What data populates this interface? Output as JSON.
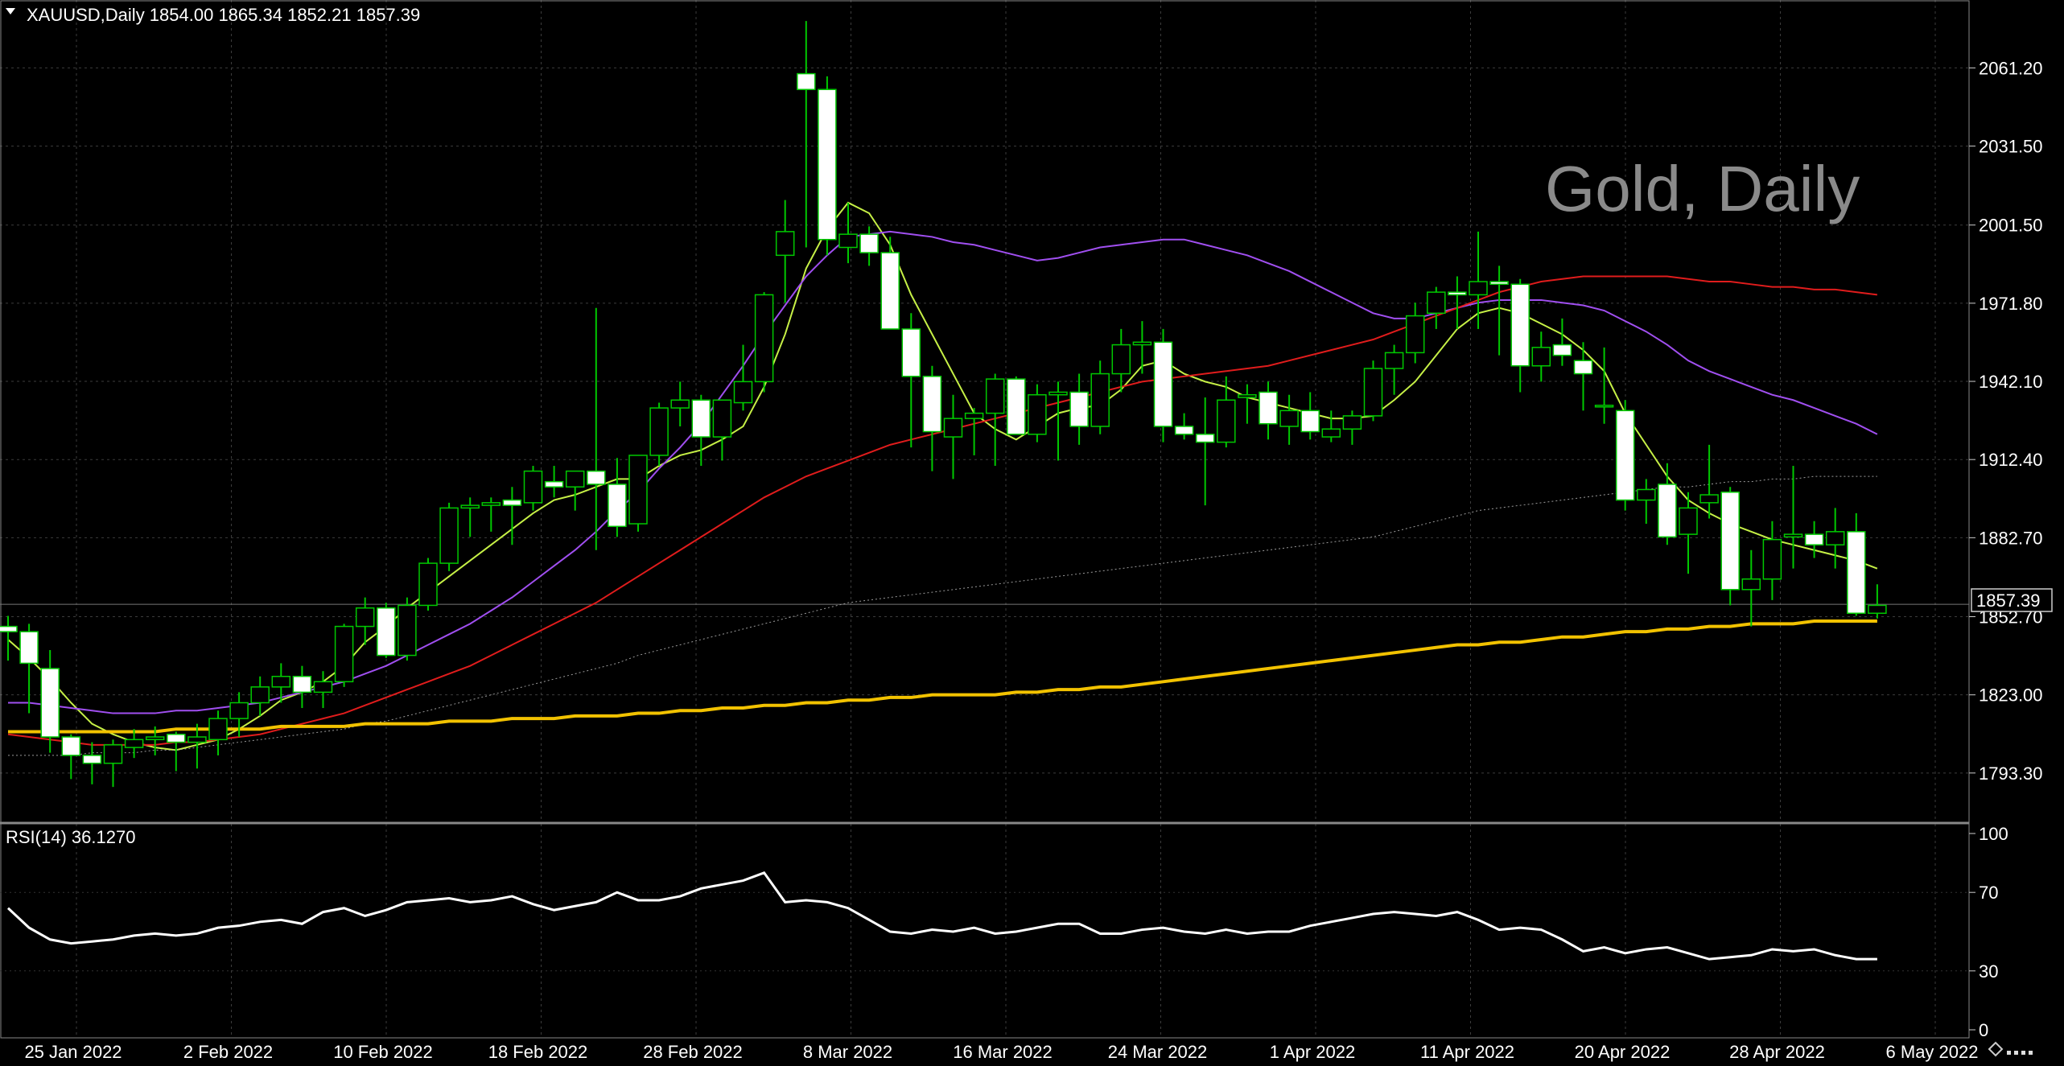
{
  "header": {
    "symbol_line": "XAUUSD,Daily  1854.00 1865.34 1852.21 1857.39"
  },
  "watermark": "Gold, Daily",
  "rsi_label": "RSI(14) 36.1270",
  "current_price_label": "1857.39",
  "colors": {
    "background": "#000000",
    "grid": "#3c3c3c",
    "bull_candle": "#000000",
    "bear_candle": "#ffffff",
    "wick": "#00c800",
    "ma_fast": "#c6f046",
    "ma_mid": "#a04ff0",
    "ma_slow": "#e01c1c",
    "ma_long": "#9a9a9a",
    "ma_200": "#f2c200",
    "rsi_line": "#ffffff"
  },
  "chart_data": [
    {
      "type": "candlestick",
      "title": "XAUUSD,Daily",
      "ylim": [
        1774.6,
        2087.0
      ],
      "y_ticks": [
        "2061.20",
        "2031.50",
        "2001.50",
        "1971.80",
        "1942.10",
        "1912.40",
        "1882.70",
        "1852.70",
        "1823.00",
        "1793.30"
      ],
      "x_ticks": [
        "25 Jan 2022",
        "2 Feb 2022",
        "10 Feb 2022",
        "18 Feb 2022",
        "28 Feb 2022",
        "8 Mar 2022",
        "16 Mar 2022",
        "24 Mar 2022",
        "1 Apr 2022",
        "11 Apr 2022",
        "20 Apr 2022",
        "28 Apr 2022",
        "6 May 2022"
      ],
      "ohlc": [
        [
          1849,
          1853,
          1836,
          1847
        ],
        [
          1847,
          1850,
          1816,
          1835
        ],
        [
          1833,
          1840,
          1801,
          1807
        ],
        [
          1807,
          1808,
          1791,
          1800
        ],
        [
          1800,
          1805,
          1789,
          1797
        ],
        [
          1797,
          1806,
          1788,
          1804
        ],
        [
          1803,
          1810,
          1799,
          1806
        ],
        [
          1806,
          1811,
          1800,
          1807
        ],
        [
          1808,
          1809,
          1794,
          1805
        ],
        [
          1805,
          1812,
          1795,
          1807
        ],
        [
          1806,
          1817,
          1800,
          1814
        ],
        [
          1814,
          1824,
          1807,
          1820
        ],
        [
          1820,
          1830,
          1815,
          1826
        ],
        [
          1826,
          1835,
          1820,
          1830
        ],
        [
          1830,
          1834,
          1818,
          1824
        ],
        [
          1824,
          1832,
          1818,
          1828
        ],
        [
          1828,
          1850,
          1826,
          1849
        ],
        [
          1849,
          1860,
          1842,
          1856
        ],
        [
          1856,
          1858,
          1837,
          1838
        ],
        [
          1838,
          1860,
          1836,
          1857
        ],
        [
          1857,
          1875,
          1855,
          1873
        ],
        [
          1873,
          1896,
          1870,
          1894
        ],
        [
          1894,
          1898,
          1883,
          1895
        ],
        [
          1895,
          1898,
          1885,
          1896
        ],
        [
          1897,
          1902,
          1880,
          1895
        ],
        [
          1896,
          1910,
          1893,
          1908
        ],
        [
          1904,
          1910,
          1898,
          1902
        ],
        [
          1902,
          1906,
          1893,
          1908
        ],
        [
          1908,
          1970,
          1878,
          1903
        ],
        [
          1903,
          1913,
          1883,
          1887
        ],
        [
          1888,
          1913,
          1885,
          1914
        ],
        [
          1914,
          1934,
          1910,
          1932
        ],
        [
          1932,
          1942,
          1925,
          1935
        ],
        [
          1935,
          1937,
          1910,
          1921
        ],
        [
          1921,
          1935,
          1912,
          1935
        ],
        [
          1934,
          1956,
          1931,
          1942
        ],
        [
          1942,
          1976,
          1938,
          1975
        ],
        [
          1990,
          2011,
          1972,
          1999
        ],
        [
          2059,
          2079,
          1993,
          2053
        ],
        [
          2053,
          2058,
          1990,
          1996
        ],
        [
          1993,
          2010,
          1987,
          1998
        ],
        [
          1998,
          2001,
          1986,
          1991
        ],
        [
          1991,
          1997,
          1965,
          1962
        ],
        [
          1962,
          1968,
          1917,
          1944
        ],
        [
          1944,
          1948,
          1908,
          1923
        ],
        [
          1921,
          1937,
          1905,
          1928
        ],
        [
          1928,
          1932,
          1914,
          1930
        ],
        [
          1930,
          1945,
          1910,
          1943
        ],
        [
          1943,
          1944,
          1924,
          1922
        ],
        [
          1922,
          1941,
          1919,
          1937
        ],
        [
          1937,
          1942,
          1912,
          1938
        ],
        [
          1938,
          1945,
          1918,
          1925
        ],
        [
          1925,
          1950,
          1922,
          1945
        ],
        [
          1945,
          1962,
          1938,
          1956
        ],
        [
          1956,
          1965,
          1945,
          1957
        ],
        [
          1957,
          1962,
          1919,
          1925
        ],
        [
          1925,
          1930,
          1920,
          1922
        ],
        [
          1922,
          1936,
          1895,
          1919
        ],
        [
          1919,
          1944,
          1917,
          1935
        ],
        [
          1936,
          1941,
          1926,
          1937
        ],
        [
          1938,
          1942,
          1920,
          1926
        ],
        [
          1925,
          1937,
          1918,
          1931
        ],
        [
          1931,
          1938,
          1920,
          1923
        ],
        [
          1921,
          1931,
          1919,
          1924
        ],
        [
          1924,
          1931,
          1918,
          1929
        ],
        [
          1929,
          1950,
          1927,
          1947
        ],
        [
          1947,
          1956,
          1937,
          1953
        ],
        [
          1953,
          1972,
          1949,
          1967
        ],
        [
          1968,
          1978,
          1962,
          1976
        ],
        [
          1976,
          1982,
          1962,
          1975
        ],
        [
          1975,
          1999,
          1962,
          1980
        ],
        [
          1980,
          1986,
          1952,
          1979
        ],
        [
          1979,
          1981,
          1938,
          1948
        ],
        [
          1948,
          1961,
          1942,
          1955
        ],
        [
          1956,
          1966,
          1948,
          1952
        ],
        [
          1950,
          1957,
          1931,
          1945
        ],
        [
          1933,
          1955,
          1926,
          1933
        ],
        [
          1931,
          1935,
          1893,
          1897
        ],
        [
          1897,
          1905,
          1888,
          1901
        ],
        [
          1903,
          1911,
          1880,
          1883
        ],
        [
          1884,
          1900,
          1869,
          1894
        ],
        [
          1896,
          1918,
          1890,
          1899
        ],
        [
          1900,
          1902,
          1857,
          1863
        ],
        [
          1863,
          1878,
          1849,
          1867
        ],
        [
          1867,
          1889,
          1859,
          1882
        ],
        [
          1883,
          1910,
          1871,
          1884
        ],
        [
          1884,
          1889,
          1875,
          1880
        ],
        [
          1880,
          1894,
          1871,
          1885
        ],
        [
          1885,
          1892,
          1853,
          1854
        ],
        [
          1854,
          1865,
          1852,
          1857
        ]
      ],
      "moving_averages": [
        {
          "color": "#c6f046",
          "values": [
            1844,
            1837,
            1829,
            1820,
            1812,
            1808,
            1805,
            1803,
            1802,
            1804,
            1806,
            1810,
            1815,
            1821,
            1824,
            1828,
            1834,
            1843,
            1849,
            1856,
            1862,
            1868,
            1874,
            1880,
            1886,
            1892,
            1897,
            1899,
            1902,
            1905,
            1905,
            1910,
            1914,
            1916,
            1920,
            1925,
            1940,
            1960,
            1985,
            2000,
            2010,
            2006,
            1994,
            1975,
            1960,
            1945,
            1930,
            1924,
            1920,
            1925,
            1930,
            1932,
            1933,
            1939,
            1948,
            1950,
            1945,
            1942,
            1940,
            1936,
            1934,
            1932,
            1930,
            1928,
            1928,
            1929,
            1935,
            1942,
            1952,
            1962,
            1968,
            1970,
            1968,
            1964,
            1960,
            1954,
            1946,
            1930,
            1918,
            1906,
            1897,
            1892,
            1888,
            1885,
            1882,
            1880,
            1878,
            1876,
            1874,
            1871
          ]
        },
        {
          "color": "#a04ff0",
          "values": [
            1820,
            1820,
            1819,
            1818,
            1817,
            1816,
            1816,
            1816,
            1817,
            1817,
            1818,
            1819,
            1820,
            1822,
            1824,
            1826,
            1828,
            1831,
            1834,
            1838,
            1842,
            1846,
            1850,
            1855,
            1860,
            1866,
            1872,
            1878,
            1885,
            1893,
            1900,
            1909,
            1917,
            1926,
            1937,
            1948,
            1960,
            1971,
            1982,
            1990,
            1997,
            1998,
            1999,
            1998,
            1997,
            1995,
            1994,
            1992,
            1990,
            1988,
            1989,
            1991,
            1993,
            1994,
            1995,
            1996,
            1996,
            1994,
            1992,
            1990,
            1987,
            1984,
            1980,
            1976,
            1972,
            1968,
            1966,
            1966,
            1968,
            1970,
            1972,
            1973,
            1973,
            1973,
            1972,
            1971,
            1969,
            1965,
            1961,
            1956,
            1950,
            1946,
            1943,
            1940,
            1937,
            1935,
            1932,
            1929,
            1926,
            1922
          ]
        },
        {
          "color": "#e01c1c",
          "values": [
            1808,
            1807,
            1806,
            1805,
            1804,
            1804,
            1804,
            1804,
            1805,
            1805,
            1806,
            1807,
            1808,
            1810,
            1812,
            1814,
            1816,
            1819,
            1822,
            1825,
            1828,
            1831,
            1834,
            1838,
            1842,
            1846,
            1850,
            1854,
            1858,
            1863,
            1868,
            1873,
            1878,
            1883,
            1888,
            1893,
            1898,
            1902,
            1906,
            1909,
            1912,
            1915,
            1918,
            1920,
            1922,
            1924,
            1926,
            1928,
            1930,
            1932,
            1934,
            1936,
            1938,
            1940,
            1942,
            1943,
            1944,
            1945,
            1946,
            1947,
            1948,
            1950,
            1952,
            1954,
            1956,
            1958,
            1961,
            1964,
            1967,
            1970,
            1973,
            1976,
            1978,
            1980,
            1981,
            1982,
            1982,
            1982,
            1982,
            1982,
            1981,
            1980,
            1980,
            1979,
            1978,
            1978,
            1977,
            1977,
            1976,
            1975
          ]
        },
        {
          "color": "#9a9a9a",
          "values": [
            1800,
            1800,
            1800,
            1800,
            1801,
            1801,
            1801,
            1802,
            1802,
            1803,
            1804,
            1805,
            1806,
            1807,
            1808,
            1809,
            1810,
            1812,
            1813,
            1815,
            1817,
            1819,
            1821,
            1823,
            1825,
            1827,
            1829,
            1831,
            1833,
            1835,
            1838,
            1840,
            1842,
            1844,
            1846,
            1848,
            1850,
            1852,
            1854,
            1856,
            1858,
            1859,
            1860,
            1861,
            1862,
            1863,
            1864,
            1865,
            1866,
            1867,
            1868,
            1869,
            1870,
            1871,
            1872,
            1873,
            1874,
            1875,
            1876,
            1877,
            1878,
            1879,
            1880,
            1881,
            1882,
            1883,
            1885,
            1887,
            1889,
            1891,
            1893,
            1894,
            1895,
            1896,
            1897,
            1898,
            1899,
            1900,
            1901,
            1902,
            1902,
            1903,
            1904,
            1904,
            1905,
            1905,
            1906,
            1906,
            1906,
            1906
          ]
        },
        {
          "color": "#f2c200",
          "values": [
            1809,
            1809,
            1809,
            1809,
            1809,
            1809,
            1809,
            1809,
            1810,
            1810,
            1810,
            1810,
            1810,
            1811,
            1811,
            1811,
            1811,
            1812,
            1812,
            1812,
            1812,
            1813,
            1813,
            1813,
            1814,
            1814,
            1814,
            1815,
            1815,
            1815,
            1816,
            1816,
            1817,
            1817,
            1818,
            1818,
            1819,
            1819,
            1820,
            1820,
            1821,
            1821,
            1822,
            1822,
            1823,
            1823,
            1823,
            1823,
            1824,
            1824,
            1825,
            1825,
            1826,
            1826,
            1827,
            1828,
            1829,
            1830,
            1831,
            1832,
            1833,
            1834,
            1835,
            1836,
            1837,
            1838,
            1839,
            1840,
            1841,
            1842,
            1842,
            1843,
            1843,
            1844,
            1845,
            1845,
            1846,
            1847,
            1847,
            1848,
            1848,
            1849,
            1849,
            1850,
            1850,
            1850,
            1851,
            1851,
            1851,
            1851
          ]
        }
      ],
      "current_price": 1857.39
    },
    {
      "type": "line",
      "title": "RSI(14) 36.1270",
      "ylim": [
        0,
        100
      ],
      "y_ticks": [
        "100",
        "70",
        "30",
        "0"
      ],
      "series": [
        {
          "values": [
            62,
            52,
            46,
            44,
            45,
            46,
            48,
            49,
            48,
            49,
            52,
            53,
            55,
            56,
            54,
            60,
            62,
            58,
            61,
            65,
            66,
            67,
            65,
            66,
            68,
            64,
            61,
            63,
            65,
            70,
            66,
            66,
            68,
            72,
            74,
            76,
            80,
            65,
            66,
            65,
            62,
            56,
            50,
            49,
            51,
            50,
            52,
            49,
            50,
            52,
            54,
            54,
            49,
            49,
            51,
            52,
            50,
            49,
            51,
            49,
            50,
            50,
            53,
            55,
            57,
            59,
            60,
            59,
            58,
            60,
            56,
            51,
            52,
            51,
            46,
            40,
            42,
            39,
            41,
            42,
            39,
            36,
            37,
            38,
            41,
            40,
            41,
            38,
            36,
            36
          ]
        }
      ]
    }
  ]
}
